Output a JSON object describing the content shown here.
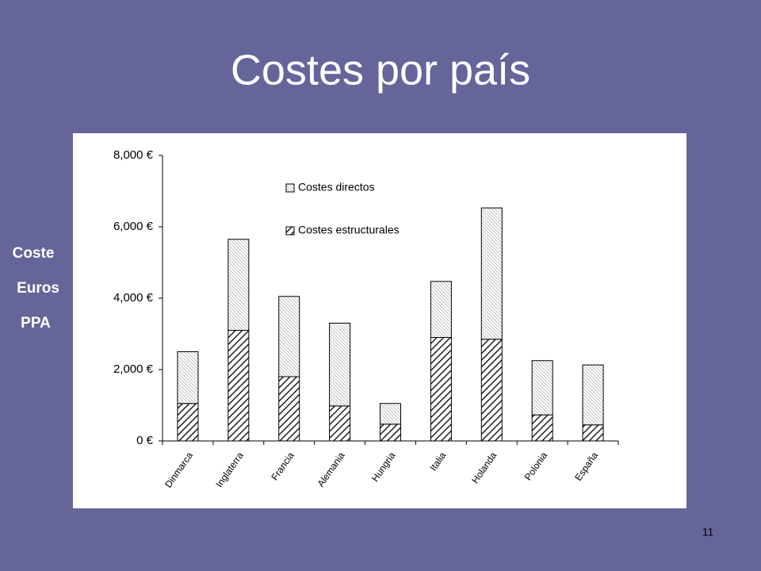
{
  "chart_data": {
    "type": "stacked-bar",
    "title": "Costes por país",
    "ylabel": [
      "Coste",
      "Euros",
      "PPA"
    ],
    "categories": [
      "Dinmarca",
      "Inglaterra",
      "Francia",
      "Alemania",
      "Hungria",
      "Italia",
      "Holanda",
      "Polonia",
      "España"
    ],
    "series": [
      {
        "name": "Costes directos",
        "color": "#000000",
        "pattern": "fine",
        "values": [
          1450,
          2550,
          2250,
          2320,
          580,
          1570,
          3680,
          1520,
          1680
        ]
      },
      {
        "name": "Costes estructurales",
        "color": "#000000",
        "pattern": "bold",
        "values": [
          1050,
          3100,
          1800,
          980,
          470,
          2900,
          2850,
          730,
          450
        ]
      }
    ],
    "ylim": [
      0,
      8000
    ],
    "yticks": [
      {
        "value": 0,
        "label": "0 €"
      },
      {
        "value": 2000,
        "label": "2,000 €"
      },
      {
        "value": 4000,
        "label": "4,000 €"
      },
      {
        "value": 6000,
        "label": "6,000 €"
      },
      {
        "value": 8000,
        "label": "8,000 €"
      }
    ],
    "grid": false
  },
  "page_number": "11"
}
